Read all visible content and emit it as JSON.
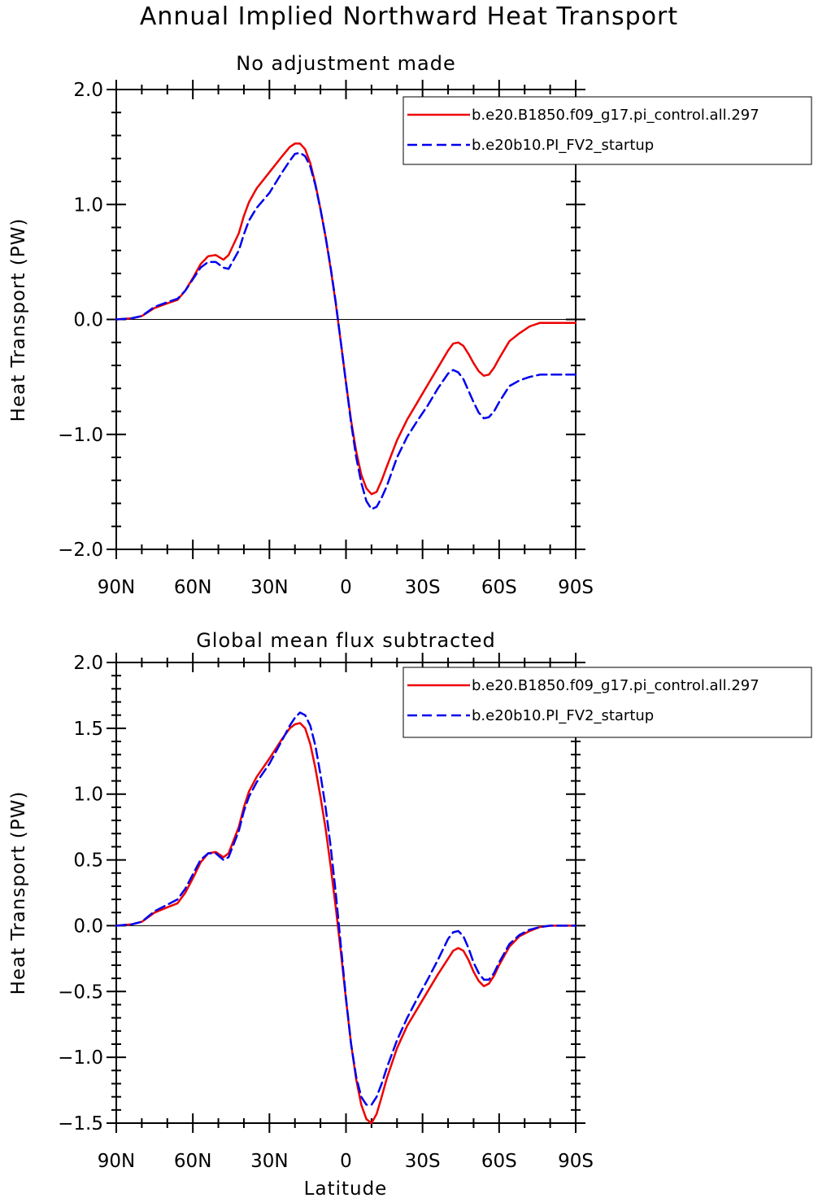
{
  "figure_title": "Annual Implied Northward Heat Transport",
  "xlabel": "Latitude",
  "chart_data": [
    {
      "type": "line",
      "title": "No adjustment made",
      "ylabel": "Heat Transport (PW)",
      "xlabel": "",
      "ylim": [
        -2.0,
        2.0
      ],
      "yticks": [
        2.0,
        1.0,
        0.0,
        -1.0,
        -2.0
      ],
      "ytick_labels": [
        "2.0",
        "1.0",
        "0.0",
        "−1.0",
        "−2.0"
      ],
      "xlim": [
        90,
        -90
      ],
      "xticks": [
        90,
        60,
        30,
        0,
        -30,
        -60,
        -90
      ],
      "xtick_labels": [
        "90N",
        "60N",
        "30N",
        "0",
        "30S",
        "60S",
        "90S"
      ],
      "legend_position": "top-right",
      "series": [
        {
          "name": "b.e20.B1850.f09_g17.pi_control.all.297",
          "color": "#ee0000",
          "dash": "solid",
          "x": [
            90,
            84,
            80,
            75,
            70,
            66,
            63,
            60,
            57,
            54,
            51,
            48,
            46,
            42,
            40,
            38,
            35,
            30,
            25,
            22,
            20,
            18,
            16,
            14,
            12,
            10,
            8,
            6,
            4,
            2,
            0,
            -2,
            -4,
            -6,
            -8,
            -10,
            -12,
            -14,
            -16,
            -20,
            -24,
            -28,
            -32,
            -36,
            -40,
            -42,
            -44,
            -46,
            -48,
            -50,
            -52,
            -54,
            -56,
            -58,
            -60,
            -64,
            -68,
            -72,
            -76,
            -80,
            -84,
            -90
          ],
          "y": [
            0.0,
            0.01,
            0.03,
            0.1,
            0.14,
            0.17,
            0.25,
            0.36,
            0.48,
            0.55,
            0.56,
            0.52,
            0.56,
            0.75,
            0.9,
            1.02,
            1.14,
            1.28,
            1.42,
            1.5,
            1.53,
            1.53,
            1.48,
            1.36,
            1.18,
            0.96,
            0.72,
            0.44,
            0.14,
            -0.2,
            -0.55,
            -0.88,
            -1.15,
            -1.35,
            -1.47,
            -1.52,
            -1.5,
            -1.4,
            -1.28,
            -1.05,
            -0.87,
            -0.72,
            -0.57,
            -0.42,
            -0.27,
            -0.21,
            -0.2,
            -0.23,
            -0.3,
            -0.38,
            -0.45,
            -0.49,
            -0.48,
            -0.42,
            -0.34,
            -0.19,
            -0.12,
            -0.06,
            -0.03,
            -0.03,
            -0.03,
            -0.03
          ]
        },
        {
          "name": "b.e20b10.PI_FV2_startup",
          "color": "#0000ee",
          "dash": "dashed",
          "x": [
            90,
            84,
            80,
            75,
            70,
            66,
            63,
            60,
            57,
            54,
            51,
            48,
            46,
            42,
            40,
            38,
            35,
            30,
            25,
            22,
            20,
            18,
            16,
            14,
            12,
            10,
            8,
            6,
            4,
            2,
            0,
            -2,
            -4,
            -6,
            -8,
            -10,
            -12,
            -14,
            -16,
            -20,
            -24,
            -28,
            -32,
            -36,
            -40,
            -42,
            -44,
            -46,
            -48,
            -50,
            -52,
            -54,
            -56,
            -58,
            -60,
            -64,
            -68,
            -72,
            -76,
            -80,
            -84,
            -90
          ],
          "y": [
            0.0,
            0.01,
            0.03,
            0.11,
            0.15,
            0.18,
            0.25,
            0.35,
            0.45,
            0.5,
            0.5,
            0.45,
            0.44,
            0.6,
            0.74,
            0.86,
            0.97,
            1.1,
            1.28,
            1.38,
            1.44,
            1.45,
            1.42,
            1.33,
            1.17,
            0.96,
            0.72,
            0.45,
            0.15,
            -0.2,
            -0.55,
            -0.9,
            -1.2,
            -1.42,
            -1.58,
            -1.65,
            -1.63,
            -1.55,
            -1.45,
            -1.2,
            -1.02,
            -0.88,
            -0.75,
            -0.6,
            -0.47,
            -0.44,
            -0.46,
            -0.52,
            -0.62,
            -0.72,
            -0.81,
            -0.86,
            -0.85,
            -0.8,
            -0.72,
            -0.58,
            -0.53,
            -0.5,
            -0.48,
            -0.48,
            -0.48,
            -0.48
          ]
        }
      ]
    },
    {
      "type": "line",
      "title": "Global mean flux subtracted",
      "ylabel": "Heat Transport (PW)",
      "xlabel": "Latitude",
      "ylim": [
        -1.5,
        2.0
      ],
      "yticks": [
        2.0,
        1.5,
        1.0,
        0.5,
        0.0,
        -0.5,
        -1.0,
        -1.5
      ],
      "ytick_labels": [
        "2.0",
        "1.5",
        "1.0",
        "0.5",
        "0.0",
        "−0.5",
        "−1.0",
        "−1.5"
      ],
      "xlim": [
        90,
        -90
      ],
      "xticks": [
        90,
        60,
        30,
        0,
        -30,
        -60,
        -90
      ],
      "xtick_labels": [
        "90N",
        "60N",
        "30N",
        "0",
        "30S",
        "60S",
        "90S"
      ],
      "legend_position": "top-right",
      "series": [
        {
          "name": "b.e20.B1850.f09_g17.pi_control.all.297",
          "color": "#ee0000",
          "dash": "solid",
          "x": [
            90,
            84,
            80,
            75,
            70,
            66,
            63,
            60,
            57,
            54,
            51,
            48,
            46,
            42,
            40,
            38,
            35,
            30,
            25,
            22,
            20,
            18,
            16,
            14,
            12,
            10,
            8,
            6,
            4,
            2,
            0,
            -2,
            -4,
            -6,
            -8,
            -10,
            -12,
            -14,
            -16,
            -20,
            -24,
            -28,
            -32,
            -36,
            -40,
            -42,
            -44,
            -46,
            -48,
            -50,
            -52,
            -54,
            -56,
            -58,
            -60,
            -64,
            -68,
            -72,
            -76,
            -80,
            -84,
            -90
          ],
          "y": [
            0.0,
            0.01,
            0.03,
            0.1,
            0.14,
            0.17,
            0.25,
            0.36,
            0.48,
            0.55,
            0.56,
            0.52,
            0.55,
            0.75,
            0.9,
            1.02,
            1.13,
            1.27,
            1.42,
            1.5,
            1.53,
            1.54,
            1.5,
            1.38,
            1.2,
            0.98,
            0.74,
            0.45,
            0.14,
            -0.2,
            -0.56,
            -0.9,
            -1.17,
            -1.36,
            -1.47,
            -1.5,
            -1.43,
            -1.3,
            -1.16,
            -0.93,
            -0.76,
            -0.63,
            -0.5,
            -0.37,
            -0.25,
            -0.19,
            -0.17,
            -0.19,
            -0.26,
            -0.35,
            -0.42,
            -0.46,
            -0.44,
            -0.38,
            -0.3,
            -0.16,
            -0.08,
            -0.04,
            -0.01,
            0.0,
            0.0,
            0.0
          ]
        },
        {
          "name": "b.e20b10.PI_FV2_startup",
          "color": "#0000ee",
          "dash": "dashed",
          "x": [
            90,
            84,
            80,
            75,
            70,
            66,
            63,
            60,
            57,
            54,
            51,
            48,
            46,
            42,
            40,
            38,
            35,
            30,
            25,
            22,
            20,
            18,
            16,
            14,
            12,
            10,
            8,
            6,
            4,
            2,
            0,
            -2,
            -4,
            -6,
            -8,
            -10,
            -12,
            -14,
            -16,
            -20,
            -24,
            -28,
            -32,
            -36,
            -40,
            -42,
            -44,
            -46,
            -48,
            -50,
            -52,
            -54,
            -56,
            -58,
            -60,
            -64,
            -68,
            -72,
            -76,
            -80,
            -84,
            -90
          ],
          "y": [
            0.0,
            0.01,
            0.03,
            0.11,
            0.16,
            0.2,
            0.28,
            0.39,
            0.5,
            0.55,
            0.55,
            0.5,
            0.52,
            0.72,
            0.87,
            0.98,
            1.09,
            1.23,
            1.41,
            1.52,
            1.58,
            1.62,
            1.6,
            1.52,
            1.37,
            1.15,
            0.9,
            0.6,
            0.25,
            -0.15,
            -0.55,
            -0.9,
            -1.15,
            -1.3,
            -1.36,
            -1.36,
            -1.3,
            -1.2,
            -1.08,
            -0.87,
            -0.7,
            -0.55,
            -0.41,
            -0.26,
            -0.1,
            -0.05,
            -0.04,
            -0.08,
            -0.17,
            -0.28,
            -0.36,
            -0.41,
            -0.41,
            -0.36,
            -0.28,
            -0.14,
            -0.07,
            -0.03,
            -0.01,
            0.0,
            0.0,
            0.0
          ]
        }
      ]
    }
  ]
}
